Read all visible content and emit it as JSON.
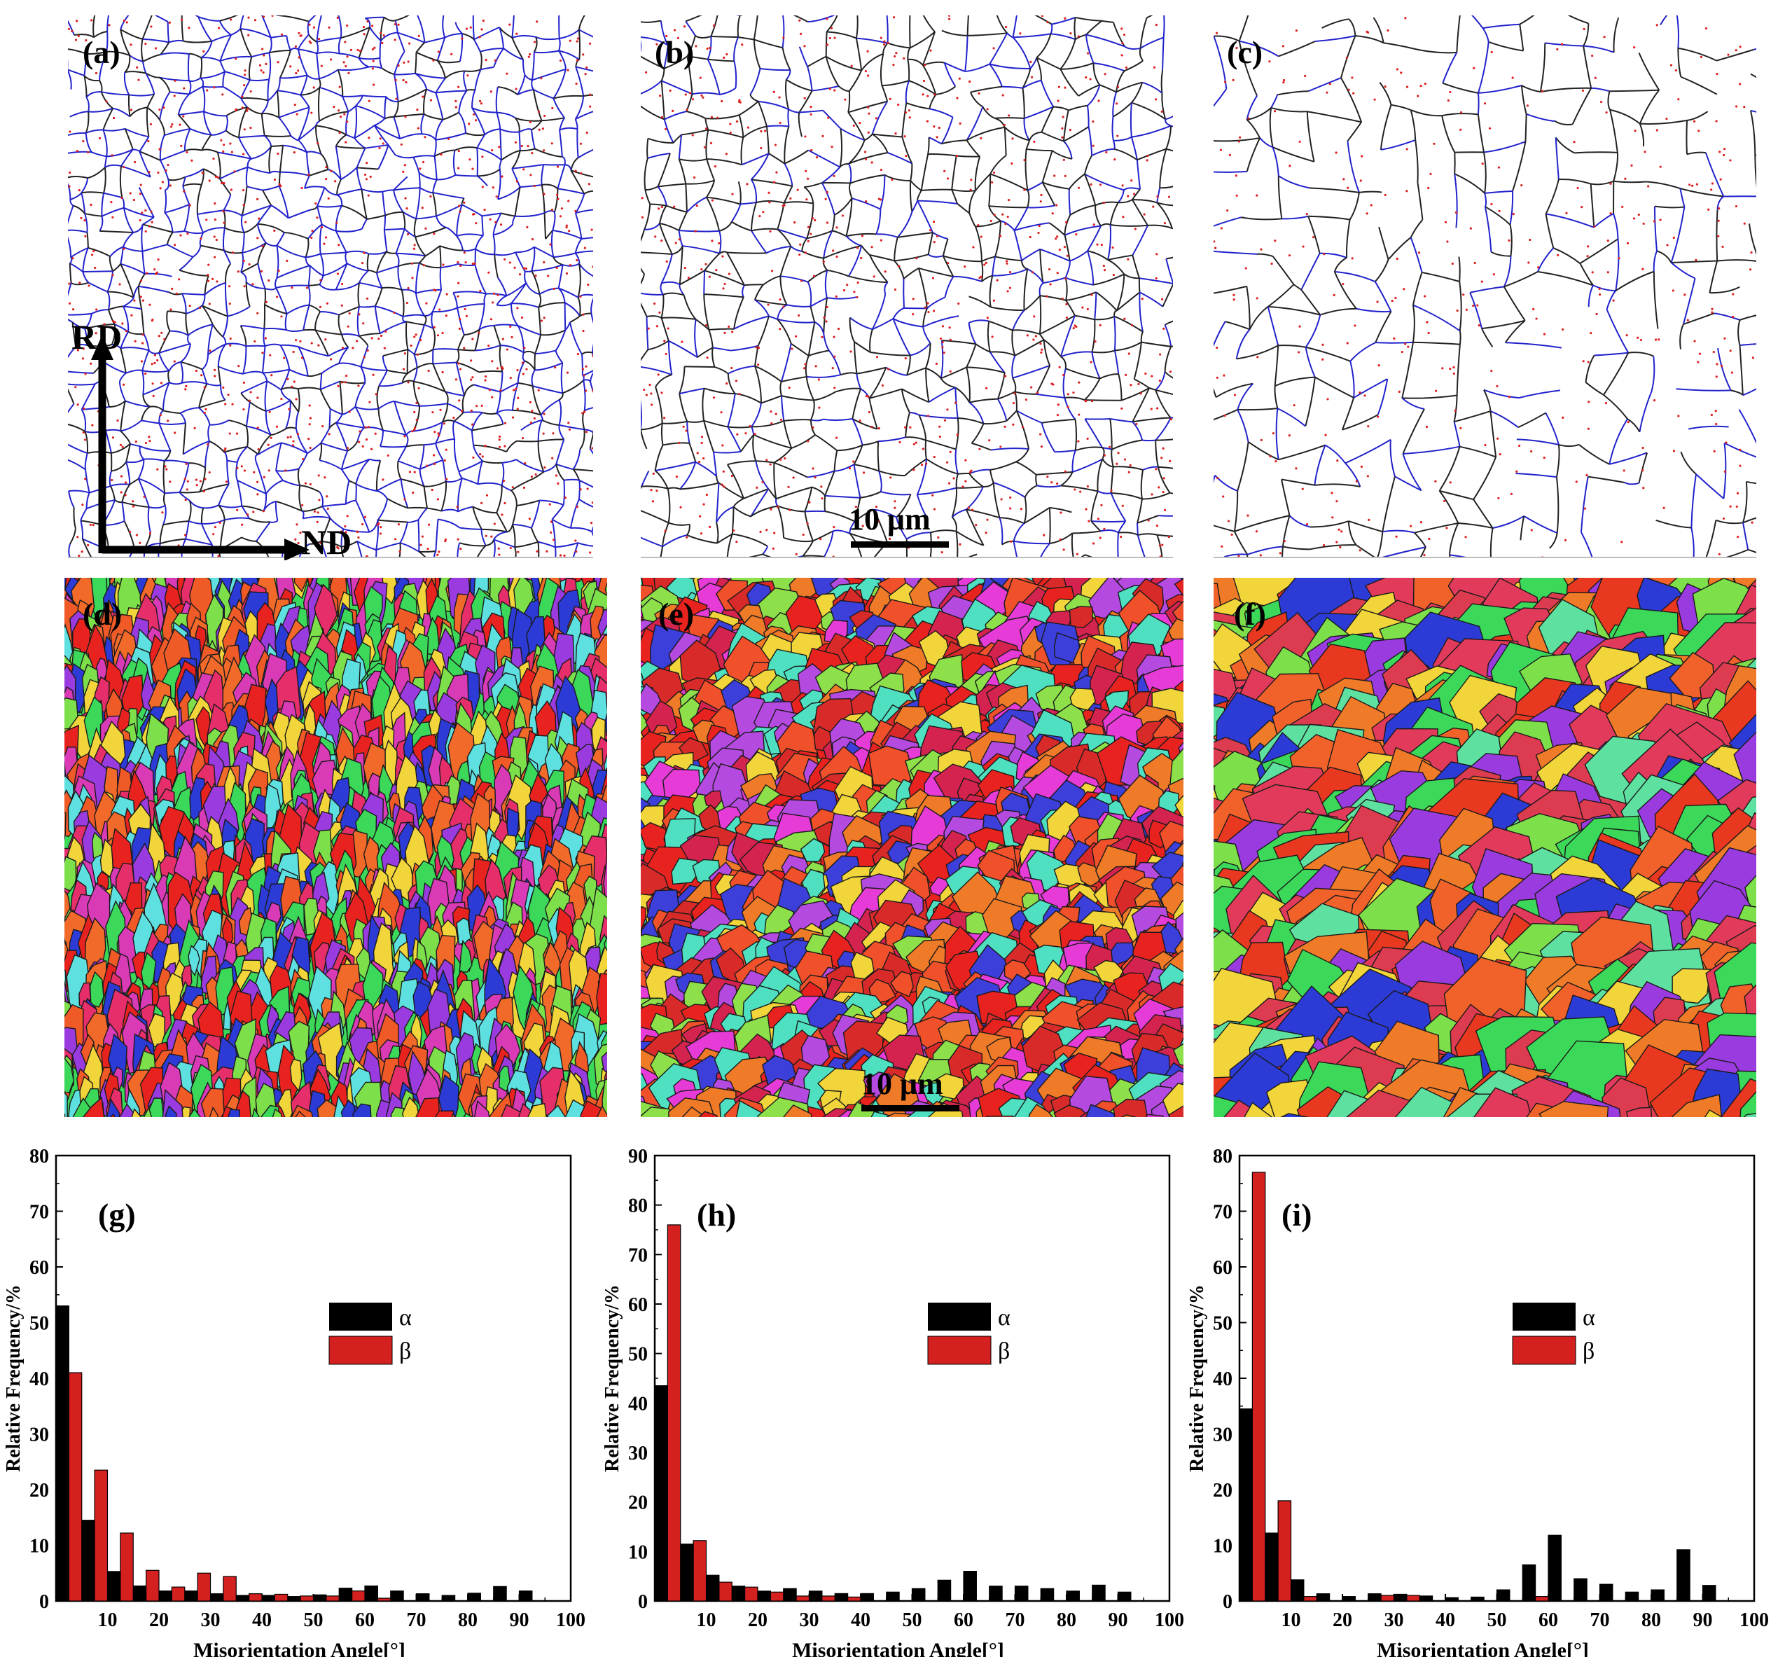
{
  "figure": {
    "boundary_panels": [
      {
        "label": "(a)",
        "style": "dense"
      },
      {
        "label": "(b)",
        "style": "mixed"
      },
      {
        "label": "(c)",
        "style": "coarse"
      }
    ],
    "ipf_panels": [
      {
        "label": "(d)"
      },
      {
        "label": "(e)"
      },
      {
        "label": "(f)"
      }
    ],
    "axes_labels": {
      "rd": "RD",
      "nd": "ND"
    },
    "scale_bar": "10 μm",
    "colors": {
      "low_angle": "#2222cc",
      "high_angle": "#222222",
      "special": "#dd1f1f",
      "alpha": "#000000",
      "beta": "#d52020"
    }
  },
  "chart_data": [
    {
      "type": "bar",
      "label": "(g)",
      "xlabel": "Misorientation Angle[°]",
      "ylabel": "Relative Frequency/%",
      "xlim": [
        0,
        100
      ],
      "ylim": [
        0,
        80
      ],
      "yticks": [
        0,
        10,
        20,
        30,
        40,
        50,
        60,
        70,
        80
      ],
      "xticks": [
        10,
        20,
        30,
        40,
        50,
        60,
        70,
        80,
        90,
        100
      ],
      "legend": [
        "α",
        "β"
      ],
      "series": [
        {
          "name": "α",
          "x": [
            2.5,
            7.5,
            12.5,
            17.5,
            22.5,
            27.5,
            32.5,
            37.5,
            42.5,
            47.5,
            52.5,
            57.5,
            62.5,
            67.5,
            72.5,
            77.5,
            82.5,
            87.5,
            92.5
          ],
          "values": [
            53,
            14.5,
            5.3,
            2.7,
            1.8,
            1.8,
            1.3,
            1.0,
            1.0,
            0.8,
            1.1,
            2.3,
            2.7,
            1.8,
            1.3,
            1.0,
            1.4,
            2.6,
            1.8
          ]
        },
        {
          "name": "β",
          "x": [
            2.5,
            7.5,
            12.5,
            17.5,
            22.5,
            27.5,
            32.5,
            37.5,
            42.5,
            47.5,
            52.5,
            57.5,
            62.5
          ],
          "values": [
            41,
            23.5,
            12.2,
            5.5,
            2.5,
            5.0,
            4.4,
            1.3,
            1.2,
            0.9,
            0.9,
            1.8,
            0.5
          ]
        }
      ]
    },
    {
      "type": "bar",
      "label": "(h)",
      "xlabel": "Misorientation Angle[°]",
      "ylabel": "Relative Frequency/%",
      "xlim": [
        0,
        100
      ],
      "ylim": [
        0,
        90
      ],
      "yticks": [
        0,
        10,
        20,
        30,
        40,
        50,
        60,
        70,
        80,
        90
      ],
      "xticks": [
        10,
        20,
        30,
        40,
        50,
        60,
        70,
        80,
        90,
        100
      ],
      "legend": [
        "α",
        "β"
      ],
      "series": [
        {
          "name": "α",
          "x": [
            2.5,
            7.5,
            12.5,
            17.5,
            22.5,
            27.5,
            32.5,
            37.5,
            42.5,
            47.5,
            52.5,
            57.5,
            62.5,
            67.5,
            72.5,
            77.5,
            82.5,
            87.5,
            92.5
          ],
          "values": [
            43.5,
            11.5,
            5.2,
            3.0,
            2.0,
            2.5,
            2.0,
            1.5,
            1.5,
            1.8,
            2.5,
            4.2,
            6.0,
            3.0,
            3.0,
            2.5,
            2.0,
            3.2,
            1.8
          ]
        },
        {
          "name": "β",
          "x": [
            2.5,
            7.5,
            12.5,
            17.5,
            22.5,
            27.5,
            32.5,
            37.5
          ],
          "values": [
            76,
            12.2,
            3.8,
            2.8,
            1.8,
            1.0,
            1.0,
            0.8
          ]
        }
      ]
    },
    {
      "type": "bar",
      "label": "(i)",
      "xlabel": "Misorientation Angle[°]",
      "ylabel": "Relative Frequency/%",
      "xlim": [
        0,
        100
      ],
      "ylim": [
        0,
        80
      ],
      "yticks": [
        0,
        10,
        20,
        30,
        40,
        50,
        60,
        70,
        80
      ],
      "xticks": [
        10,
        20,
        30,
        40,
        50,
        60,
        70,
        80,
        90,
        100
      ],
      "legend": [
        "α",
        "β"
      ],
      "series": [
        {
          "name": "α",
          "x": [
            2.5,
            7.5,
            12.5,
            17.5,
            22.5,
            27.5,
            32.5,
            37.5,
            42.5,
            47.5,
            52.5,
            57.5,
            62.5,
            67.5,
            72.5,
            77.5,
            82.5,
            87.5,
            92.5
          ],
          "values": [
            34.5,
            12.2,
            3.8,
            1.3,
            0.8,
            1.3,
            1.2,
            0.9,
            0.6,
            0.7,
            2.0,
            6.5,
            11.8,
            4.0,
            3.0,
            1.6,
            2.0,
            9.2,
            2.8
          ]
        },
        {
          "name": "β",
          "x": [
            2.5,
            7.5,
            12.5,
            27.5,
            32.5,
            57.5
          ],
          "values": [
            77,
            18,
            0.8,
            1.0,
            1.0,
            0.8
          ]
        }
      ]
    }
  ]
}
